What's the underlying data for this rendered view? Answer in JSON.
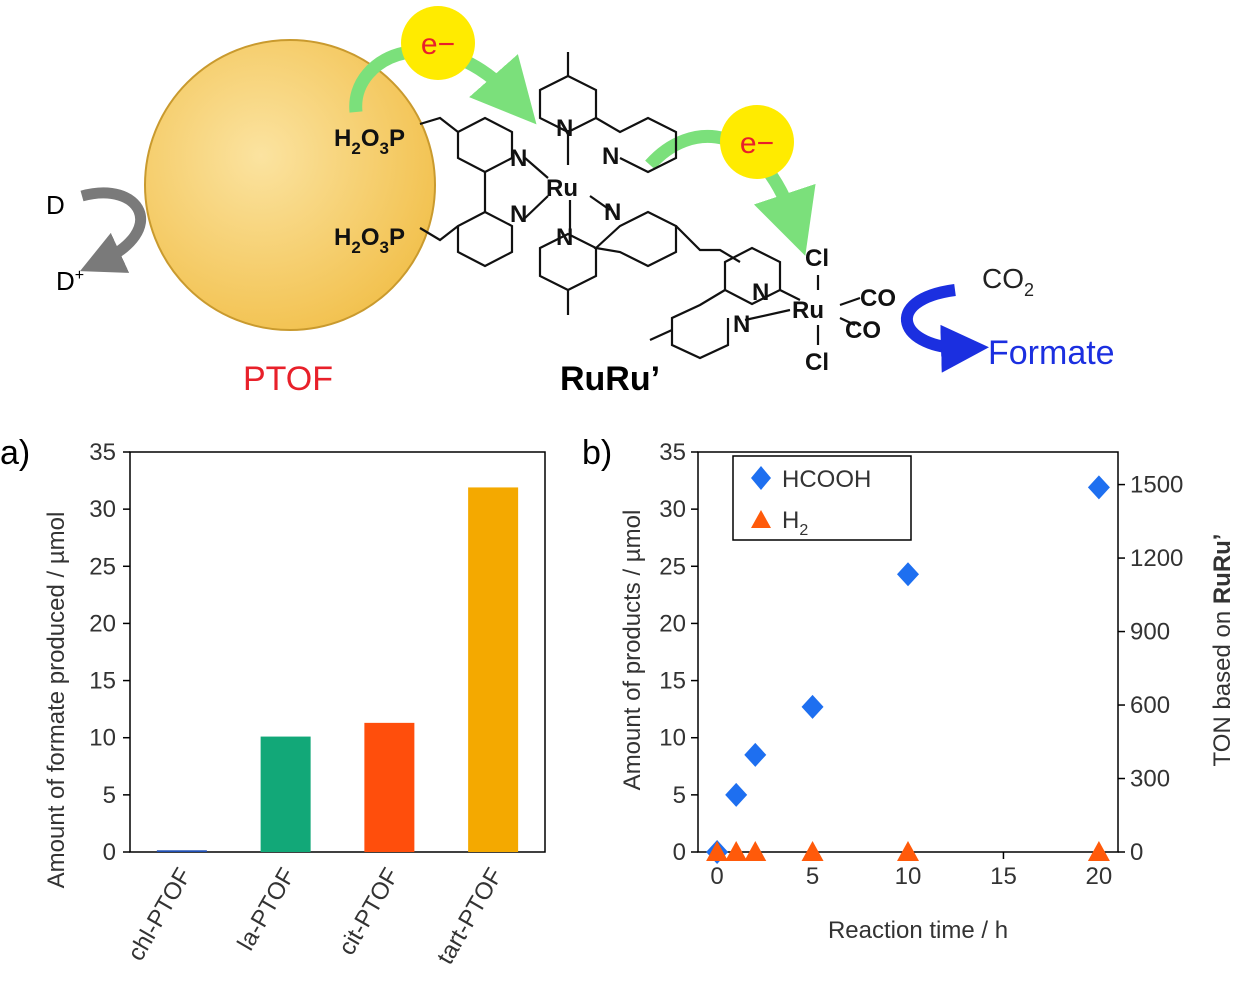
{
  "scheme": {
    "electron_label": "e−",
    "donor": "D",
    "donor_oxidized": "D+",
    "ptof_label": "PTOF",
    "complex_label": "RuRu’",
    "co2_label": "CO2",
    "formate_label": "Formate",
    "phosphonate": "H2O3P",
    "atoms": {
      "N": "N",
      "Ru": "Ru",
      "Cl": "Cl",
      "CO": "CO"
    },
    "colors": {
      "ptof_fill": "#F2C14E",
      "ptof_label": "#E8202A",
      "electron": "#FFEB00",
      "green_arrow": "#6FDB6F",
      "blue_arrow": "#1B2FE0",
      "gray_arrow": "#7A7A7A"
    }
  },
  "chart_data": [
    {
      "panel": "a)",
      "type": "bar",
      "title": "",
      "xlabel": "",
      "ylabel": "Amount of formate produced / µmol",
      "ylim": [
        0,
        35
      ],
      "yticks": [
        0,
        5,
        10,
        15,
        20,
        25,
        30,
        35
      ],
      "categories": [
        "chl-PTOF",
        "la-PTOF",
        "cit-PTOF",
        "tart-PTOF"
      ],
      "values": [
        0.15,
        10.1,
        11.3,
        31.9
      ],
      "colors": [
        "#1F4FB4",
        "#12A878",
        "#FF4E0C",
        "#F4A900"
      ],
      "grid": false
    },
    {
      "panel": "b)",
      "type": "scatter",
      "title": "",
      "xlabel": "Reaction time / h",
      "ylabel": "Amount of products / µmol",
      "y2label": "TON based on RuRu’",
      "xlim": [
        -1,
        21
      ],
      "xticks": [
        0,
        5,
        10,
        15,
        20
      ],
      "ylim": [
        0,
        35
      ],
      "yticks": [
        0,
        5,
        10,
        15,
        20,
        25,
        30,
        35
      ],
      "y2lim": [
        0,
        1633
      ],
      "y2ticks": [
        0,
        300,
        600,
        900,
        1200,
        1500
      ],
      "legend": "top-left",
      "grid": false,
      "series": [
        {
          "name": "HCOOH",
          "marker": "diamond",
          "color": "#1E6FF0",
          "x": [
            0,
            1,
            2,
            5,
            10,
            20
          ],
          "y": [
            0,
            5.0,
            8.5,
            12.7,
            24.3,
            31.9
          ]
        },
        {
          "name": "H2",
          "marker": "triangle",
          "color": "#FF5A0A",
          "x": [
            0,
            1,
            2,
            5,
            10,
            20
          ],
          "y": [
            0,
            0,
            0,
            0,
            0,
            0
          ]
        }
      ]
    }
  ]
}
